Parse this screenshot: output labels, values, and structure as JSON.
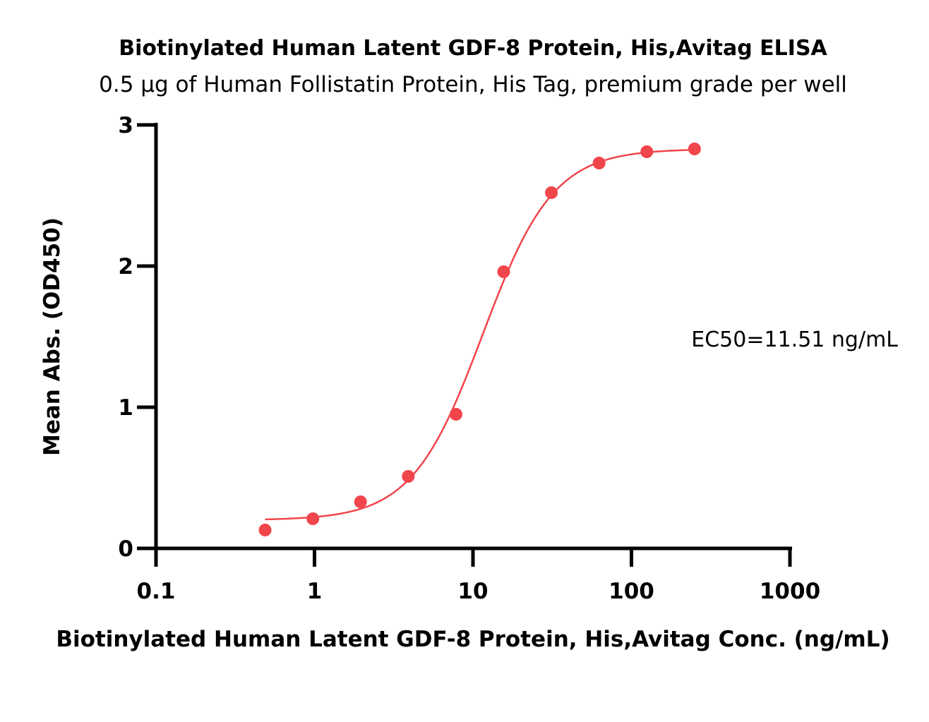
{
  "chart_data": {
    "type": "scatter",
    "title": "Biotinylated Human Latent GDF-8 Protein, His,Avitag ELISA",
    "subtitle": "0.5 μg of Human Follistatin Protein, His Tag, premium grade per well",
    "xlabel": "Biotinylated Human Latent GDF-8 Protein, His,Avitag Conc. (ng/mL)",
    "ylabel": "Mean Abs. (OD450)",
    "x_scale": "log",
    "xlim": [
      0.1,
      1000
    ],
    "ylim": [
      0,
      3
    ],
    "x_ticks": [
      0.1,
      1,
      10,
      100,
      1000
    ],
    "x_tick_labels": [
      "0.1",
      "1",
      "10",
      "100",
      "1000"
    ],
    "y_ticks": [
      0,
      1,
      2,
      3
    ],
    "y_tick_labels": [
      "0",
      "1",
      "2",
      "3"
    ],
    "grid": false,
    "legend": "none",
    "color": "#f0454b",
    "series": [
      {
        "points": [
          {
            "x": 0.488,
            "y": 0.13
          },
          {
            "x": 0.977,
            "y": 0.21
          },
          {
            "x": 1.953,
            "y": 0.33
          },
          {
            "x": 3.906,
            "y": 0.51
          },
          {
            "x": 7.813,
            "y": 0.95
          },
          {
            "x": 15.625,
            "y": 1.96
          },
          {
            "x": 31.25,
            "y": 2.52
          },
          {
            "x": 62.5,
            "y": 2.73
          },
          {
            "x": 125,
            "y": 2.81
          },
          {
            "x": 250,
            "y": 2.83
          }
        ],
        "fit": {
          "model": "4PL",
          "bottom": 0.2,
          "top": 2.83,
          "ec50": 11.51,
          "hill": 1.95,
          "x_range": [
            0.488,
            250
          ]
        }
      }
    ],
    "annotation": "EC50=11.51 ng/mL"
  }
}
